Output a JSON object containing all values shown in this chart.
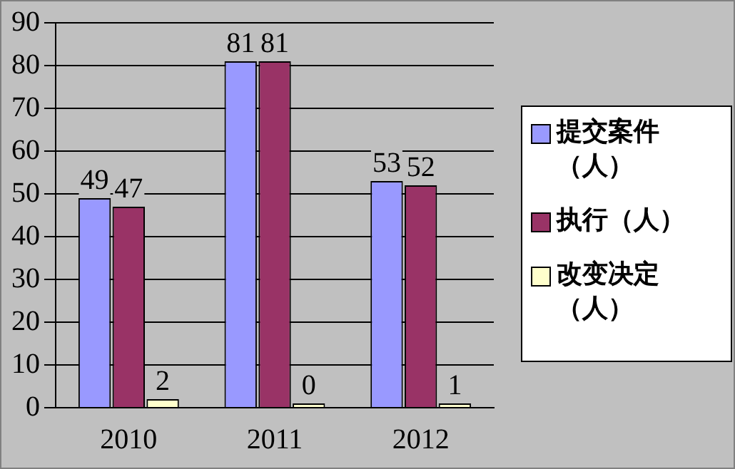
{
  "chart_data": {
    "type": "bar",
    "categories": [
      "2010",
      "2011",
      "2012"
    ],
    "series": [
      {
        "name": "提交案件（人）",
        "color": "#9999ff",
        "values": [
          49,
          81,
          53
        ]
      },
      {
        "name": "执行（人）",
        "color": "#993366",
        "values": [
          47,
          81,
          52
        ]
      },
      {
        "name": "改变决定（人）",
        "color": "#ffffcc",
        "values": [
          2,
          0,
          1
        ]
      }
    ],
    "ylim": [
      0,
      90
    ],
    "yticks": [
      0,
      10,
      20,
      30,
      40,
      50,
      60,
      70,
      80,
      90
    ],
    "grid": "y",
    "legend": "right",
    "data_labels": true
  }
}
